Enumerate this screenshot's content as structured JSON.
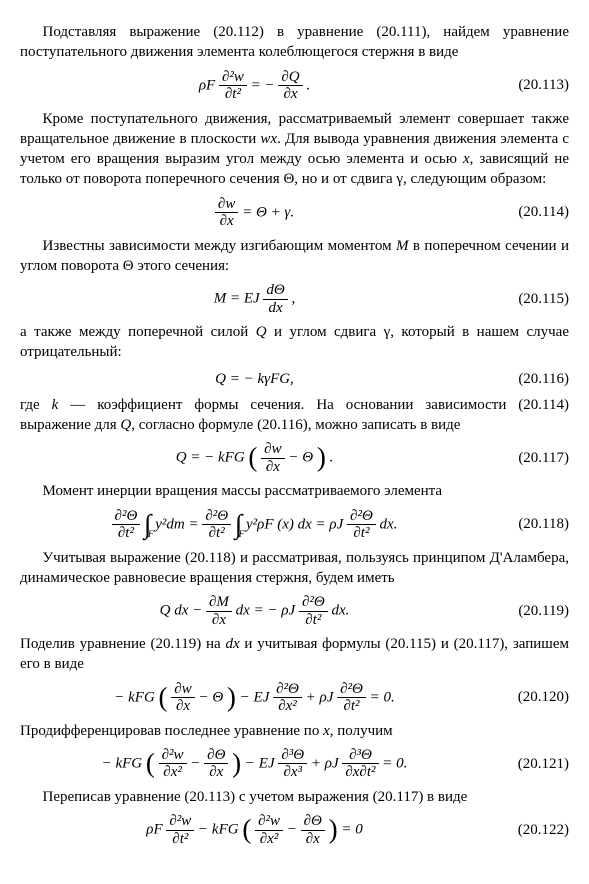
{
  "p1": "Подставляя выражение (20.112) в уравнение (20.111), найдем уравнение поступательного движения элемента колеблющегося стержня в виде",
  "eq113": {
    "lhs_rho": "ρ",
    "lhs_F": "F",
    "num": "∂²w",
    "den": "∂t²",
    "rhs_num": "∂Q",
    "rhs_den": "∂x",
    "num_label": "(20.113)"
  },
  "p2": "Кроме поступательного движения, рассматриваемый элемент совершает также вращательное движение в плоскости ",
  "p2b": "wx",
  "p2c": ". Для вывода уравнения движения элемента с учетом его вращения выразим угол между осью элемента и осью ",
  "p2d": "x",
  "p2e": ", зависящий не только от поворота поперечного сечения Θ, но и от сдвига γ, следующим образом:",
  "eq114": {
    "num": "∂w",
    "den": "∂x",
    "rhs": "Θ + γ.",
    "num_label": "(20.114)"
  },
  "p3a": "Известны зависимости между изгибающим моментом ",
  "p3b": "M",
  "p3c": " в поперечном сечении и углом поворота Θ этого сечения:",
  "eq115": {
    "lhs": "M",
    "rhs_coef": "EJ",
    "num": "dΘ",
    "den": "dx",
    "num_label": "(20.115)"
  },
  "p4a": "а также между поперечной силой ",
  "p4b": "Q",
  "p4c": " и углом сдвига γ, который в нашем случае отрицательный:",
  "eq116": {
    "body": "Q = − kγFG,",
    "num_label": "(20.116)"
  },
  "p5a": "где ",
  "p5b": "k",
  "p5c": " — коэффициент формы сечения. На основании зависимости (20.114) выражение для ",
  "p5d": "Q",
  "p5e": ", согласно формуле (20.116), можно записать в виде",
  "eq117": {
    "lhs": "Q = − kFG",
    "num": "∂w",
    "den": "∂x",
    "theta": " − Θ",
    "num_label": "(20.117)"
  },
  "p6": "Момент инерции вращения массы рассматриваемого элемента",
  "eq118": {
    "f1n": "∂²Θ",
    "f1d": "∂t²",
    "int_lb": "F",
    "mid": "y²dm =",
    "f2n": "∂²Θ",
    "f2d": "∂t²",
    "mid2": "y²ρF (x) dx = ρJ",
    "f3n": "∂²Θ",
    "f3d": "∂t²",
    "tail": "dx.",
    "num_label": "(20.118)"
  },
  "p7": "Учитывая выражение (20.118) и рассматривая, пользуясь принципом Д'Аламбера, динамическое равновесие вращения стержня, будем иметь",
  "eq119": {
    "lhs": "Q dx −",
    "f1n": "∂M",
    "f1d": "∂x",
    "mid": "dx = − ρJ",
    "f2n": "∂²Θ",
    "f2d": "∂t²",
    "tail": "dx.",
    "num_label": "(20.119)"
  },
  "p8a": "Поделив уравнение (20.119) на ",
  "p8b": "dx",
  "p8c": " и учитывая формулы (20.115) и (20.117), запишем его в виде",
  "eq120": {
    "pre": "− kFG",
    "f1n": "∂w",
    "f1d": "∂x",
    "th": " − Θ",
    "mid": " − EJ",
    "f2n": "∂²Θ",
    "f2d": "∂x²",
    "mid2": " + ρJ",
    "f3n": "∂²Θ",
    "f3d": "∂t²",
    "tail": " = 0.",
    "num_label": "(20.120)"
  },
  "p9a": "Продифференцировав последнее уравнение по ",
  "p9b": "x",
  "p9c": ", получим",
  "eq121": {
    "pre": "− kFG",
    "f1n": "∂²w",
    "f1d": "∂x²",
    "mid1": " − ",
    "f2n": "∂Θ",
    "f2d": "∂x",
    "mid2": " − EJ",
    "f3n": "∂³Θ",
    "f3d": "∂x³",
    "mid3": " + ρJ",
    "f4n": "∂³Θ",
    "f4d": "∂x∂t²",
    "tail": " = 0.",
    "num_label": "(20.121)"
  },
  "p10": "Переписав уравнение (20.113) с учетом выражения (20.117) в виде",
  "eq122": {
    "pre": "ρF",
    "f1n": "∂²w",
    "f1d": "∂t²",
    "mid": " − kFG",
    "f2n": "∂²w",
    "f2d": "∂x²",
    "mid2": " − ",
    "f3n": "∂Θ",
    "f3d": "∂x",
    "tail": " = 0",
    "num_label": "(20.122)"
  }
}
